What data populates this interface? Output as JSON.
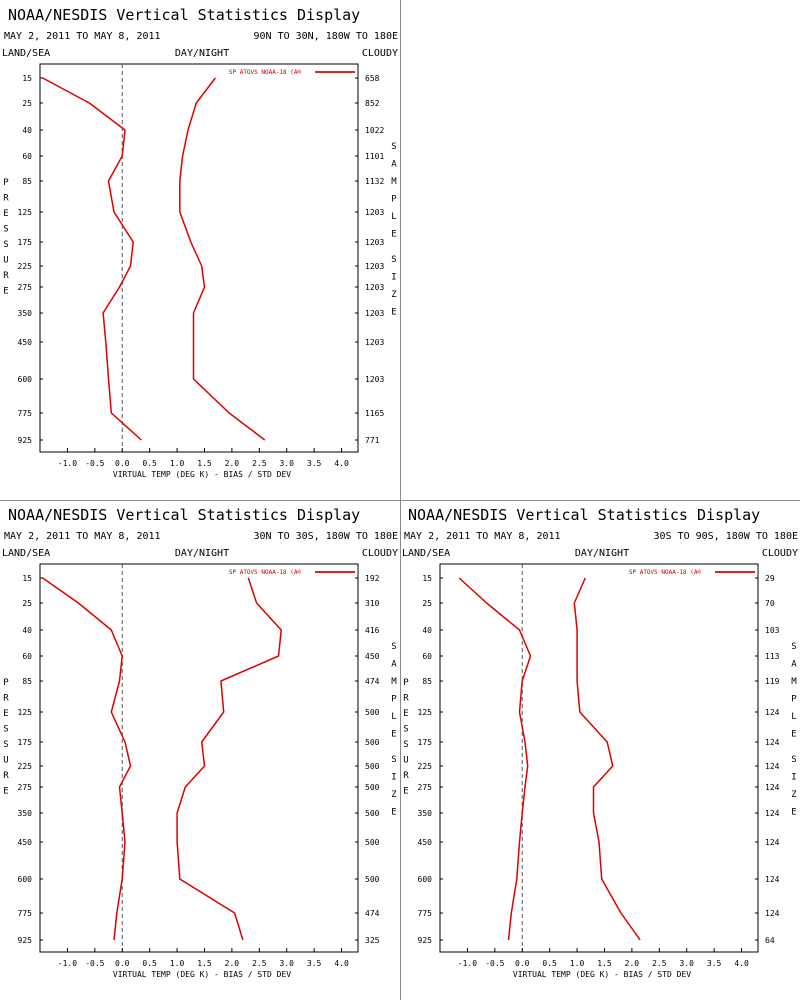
{
  "colors": {
    "series": "#dd0000",
    "frame": "#000000",
    "zero_line": "#555555"
  },
  "chart_data": [
    {
      "type": "line",
      "title": "NOAA/NESDIS Vertical Statistics Display",
      "date_range": "MAY 2, 2011 TO MAY 8, 2011",
      "region": "90N TO 30N, 180W TO 180E",
      "corner_labels": {
        "left": "LAND/SEA",
        "center": "DAY/NIGHT",
        "right": "CLOUDY"
      },
      "legend": "SP ATOVS NOAA-18 (A®",
      "xlabel": "VIRTUAL TEMP (DEG K) - BIAS / STD DEV",
      "left_axis_label": "PRESSURE",
      "right_axis_label": "SAMPLE SIZE",
      "xlim": [
        -1.5,
        4.3
      ],
      "x_ticks": [
        "-1.0",
        "-0.5",
        "0.0",
        "0.5",
        "1.0",
        "1.5",
        "2.0",
        "2.5",
        "3.0",
        "3.5",
        "4.0"
      ],
      "pressure_levels": [
        "15",
        "25",
        "40",
        "60",
        "85",
        "125",
        "175",
        "225",
        "275",
        "350",
        "450",
        "600",
        "775",
        "925"
      ],
      "sample_size": [
        "658",
        "852",
        "1022",
        "1101",
        "1132",
        "1203",
        "1203",
        "1203",
        "1203",
        "1203",
        "1203",
        "1203",
        "1165",
        "771"
      ],
      "series": [
        {
          "values": [
            -1.45,
            -0.6,
            0.05,
            0.0,
            -0.25,
            -0.15,
            0.2,
            0.15,
            -0.05,
            -0.35,
            -0.3,
            -0.25,
            -0.2,
            0.35
          ]
        },
        {
          "values": [
            1.7,
            1.35,
            1.2,
            1.1,
            1.05,
            1.05,
            1.25,
            1.45,
            1.5,
            1.3,
            1.3,
            1.3,
            1.95,
            2.6
          ]
        }
      ]
    },
    {
      "type": "line",
      "title": "NOAA/NESDIS Vertical Statistics Display",
      "date_range": "MAY 2, 2011 TO MAY 8, 2011",
      "region": "30N TO 30S, 180W TO 180E",
      "corner_labels": {
        "left": "LAND/SEA",
        "center": "DAY/NIGHT",
        "right": "CLOUDY"
      },
      "legend": "SP ATOVS NOAA-18 (A®",
      "xlabel": "VIRTUAL TEMP (DEG K) - BIAS / STD DEV",
      "left_axis_label": "PRESSURE",
      "right_axis_label": "SAMPLE SIZE",
      "xlim": [
        -1.5,
        4.3
      ],
      "x_ticks": [
        "-1.0",
        "-0.5",
        "0.0",
        "0.5",
        "1.0",
        "1.5",
        "2.0",
        "2.5",
        "3.0",
        "3.5",
        "4.0"
      ],
      "pressure_levels": [
        "15",
        "25",
        "40",
        "60",
        "85",
        "125",
        "175",
        "225",
        "275",
        "350",
        "450",
        "600",
        "775",
        "925"
      ],
      "sample_size": [
        "192",
        "310",
        "416",
        "450",
        "474",
        "500",
        "500",
        "500",
        "500",
        "500",
        "500",
        "500",
        "474",
        "325"
      ],
      "series": [
        {
          "values": [
            -1.45,
            -0.8,
            -0.2,
            0.0,
            -0.05,
            -0.2,
            0.05,
            0.15,
            -0.05,
            0.0,
            0.05,
            0.0,
            -0.1,
            -0.15
          ]
        },
        {
          "values": [
            2.3,
            2.45,
            2.9,
            2.85,
            1.8,
            1.85,
            1.45,
            1.5,
            1.15,
            1.0,
            1.0,
            1.05,
            2.05,
            2.2
          ]
        }
      ]
    },
    {
      "type": "line",
      "title": "NOAA/NESDIS Vertical Statistics Display",
      "date_range": "MAY 2, 2011 TO MAY 8, 2011",
      "region": "30S TO 90S, 180W TO 180E",
      "corner_labels": {
        "left": "LAND/SEA",
        "center": "DAY/NIGHT",
        "right": "CLOUDY"
      },
      "legend": "SP ATOVS NOAA-18 (A®",
      "xlabel": "VIRTUAL TEMP (DEG K) - BIAS / STD DEV",
      "left_axis_label": "PRESSURE",
      "right_axis_label": "SAMPLE SIZE",
      "xlim": [
        -1.5,
        4.3
      ],
      "x_ticks": [
        "-1.0",
        "-0.5",
        "0.0",
        "0.5",
        "1.0",
        "1.5",
        "2.0",
        "2.5",
        "3.0",
        "3.5",
        "4.0"
      ],
      "pressure_levels": [
        "15",
        "25",
        "40",
        "60",
        "85",
        "125",
        "175",
        "225",
        "275",
        "350",
        "450",
        "600",
        "775",
        "925"
      ],
      "sample_size": [
        "29",
        "70",
        "103",
        "113",
        "119",
        "124",
        "124",
        "124",
        "124",
        "124",
        "124",
        "124",
        "124",
        "64"
      ],
      "series": [
        {
          "values": [
            -1.15,
            -0.65,
            -0.05,
            0.15,
            0.0,
            -0.05,
            0.05,
            0.1,
            0.05,
            0.0,
            -0.05,
            -0.1,
            -0.2,
            -0.25
          ]
        },
        {
          "values": [
            1.15,
            0.95,
            1.0,
            1.0,
            1.0,
            1.05,
            1.55,
            1.65,
            1.3,
            1.3,
            1.4,
            1.45,
            1.8,
            2.15
          ]
        }
      ]
    }
  ]
}
